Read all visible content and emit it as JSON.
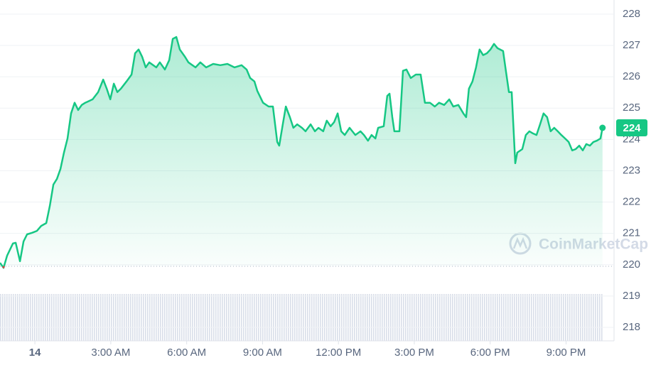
{
  "chart_data": {
    "type": "line",
    "x": [
      -1.38,
      -1.24,
      -1.1,
      -0.87,
      -0.76,
      -0.59,
      -0.45,
      -0.31,
      -0.11,
      0.08,
      0.25,
      0.45,
      0.59,
      0.73,
      0.87,
      1.01,
      1.15,
      1.29,
      1.43,
      1.57,
      1.71,
      1.85,
      1.99,
      2.28,
      2.5,
      2.7,
      2.84,
      2.98,
      3.12,
      3.26,
      3.4,
      3.62,
      3.82,
      3.96,
      4.1,
      4.24,
      4.38,
      4.52,
      4.8,
      4.94,
      5.14,
      5.31,
      5.45,
      5.59,
      5.73,
      5.93,
      6.07,
      6.35,
      6.54,
      6.77,
      7.05,
      7.33,
      7.61,
      7.89,
      8.17,
      8.37,
      8.51,
      8.68,
      8.79,
      9.02,
      9.24,
      9.41,
      9.58,
      9.66,
      9.8,
      9.92,
      10.08,
      10.22,
      10.37,
      10.56,
      10.7,
      10.9,
      11.07,
      11.21,
      11.4,
      11.54,
      11.69,
      11.83,
      11.97,
      12.11,
      12.25,
      12.44,
      12.67,
      12.87,
      13.01,
      13.17,
      13.31,
      13.46,
      13.57,
      13.79,
      13.93,
      14.02,
      14.13,
      14.21,
      14.41,
      14.55,
      14.69,
      14.86,
      15.06,
      15.25,
      15.42,
      15.62,
      15.81,
      15.98,
      16.18,
      16.38,
      16.54,
      16.74,
      16.94,
      17.05,
      17.16,
      17.3,
      17.44,
      17.58,
      17.72,
      17.87,
      18.01,
      18.15,
      18.29,
      18.51,
      18.62,
      18.74,
      18.85,
      18.99,
      19.07,
      19.27,
      19.41,
      19.55,
      19.69,
      19.83,
      19.97,
      20.11,
      20.25,
      20.39,
      20.53,
      20.67,
      20.81,
      20.96,
      21.1,
      21.24,
      21.38,
      21.52,
      21.66,
      21.8,
      21.94,
      22.08,
      22.22,
      22.36,
      22.44
    ],
    "series": [
      {
        "color": "#16c784",
        "values": [
          220.06,
          219.9,
          220.29,
          220.68,
          220.7,
          220.11,
          220.74,
          220.97,
          221.02,
          221.08,
          221.24,
          221.33,
          221.88,
          222.56,
          222.74,
          223.06,
          223.58,
          224.03,
          224.83,
          225.17,
          224.94,
          225.1,
          225.17,
          225.28,
          225.51,
          225.91,
          225.62,
          225.28,
          225.78,
          225.51,
          225.62,
          225.85,
          226.07,
          226.75,
          226.87,
          226.64,
          226.3,
          226.46,
          226.3,
          226.46,
          226.23,
          226.53,
          227.21,
          227.27,
          226.87,
          226.64,
          226.46,
          226.3,
          226.46,
          226.3,
          226.41,
          226.37,
          226.41,
          226.3,
          226.37,
          226.23,
          225.96,
          225.85,
          225.55,
          225.17,
          225.05,
          225.05,
          223.92,
          223.8,
          224.48,
          225.05,
          224.71,
          224.37,
          224.48,
          224.37,
          224.26,
          224.48,
          224.26,
          224.37,
          224.26,
          224.6,
          224.42,
          224.55,
          224.83,
          224.26,
          224.14,
          224.37,
          224.14,
          224.26,
          224.14,
          223.96,
          224.14,
          224.03,
          224.37,
          224.42,
          225.39,
          225.46,
          224.71,
          224.26,
          224.26,
          226.19,
          226.23,
          225.96,
          226.07,
          226.07,
          225.17,
          225.17,
          225.05,
          225.17,
          225.1,
          225.28,
          225.05,
          225.1,
          224.83,
          224.71,
          225.62,
          225.85,
          226.3,
          226.87,
          226.69,
          226.75,
          226.87,
          227.05,
          226.91,
          226.82,
          226.19,
          225.51,
          225.51,
          223.24,
          223.58,
          223.69,
          224.14,
          224.26,
          224.19,
          224.14,
          224.48,
          224.83,
          224.71,
          224.26,
          224.37,
          224.26,
          224.14,
          224.03,
          223.92,
          223.65,
          223.69,
          223.8,
          223.65,
          223.85,
          223.8,
          223.92,
          223.96,
          224.03,
          224.37
        ]
      }
    ],
    "xlim": [
      -1.38,
      22.84
    ],
    "xticks": [
      {
        "value": 0,
        "label": "14"
      },
      {
        "value": 3,
        "label": "3:00 AM"
      },
      {
        "value": 6,
        "label": "6:00 AM"
      },
      {
        "value": 9,
        "label": "9:00 AM"
      },
      {
        "value": 12,
        "label": "12:00 PM"
      },
      {
        "value": 15,
        "label": "3:00 PM"
      },
      {
        "value": 18,
        "label": "6:00 PM"
      },
      {
        "value": 21,
        "label": "9:00 PM"
      }
    ],
    "ylim": [
      217.57,
      228.45
    ],
    "yticks": [
      218,
      219,
      220,
      221,
      222,
      223,
      224,
      225,
      226,
      227,
      228
    ],
    "grid": true,
    "reference_line": 219.95,
    "current_value": 224,
    "watermark": "CoinMarketCap"
  }
}
